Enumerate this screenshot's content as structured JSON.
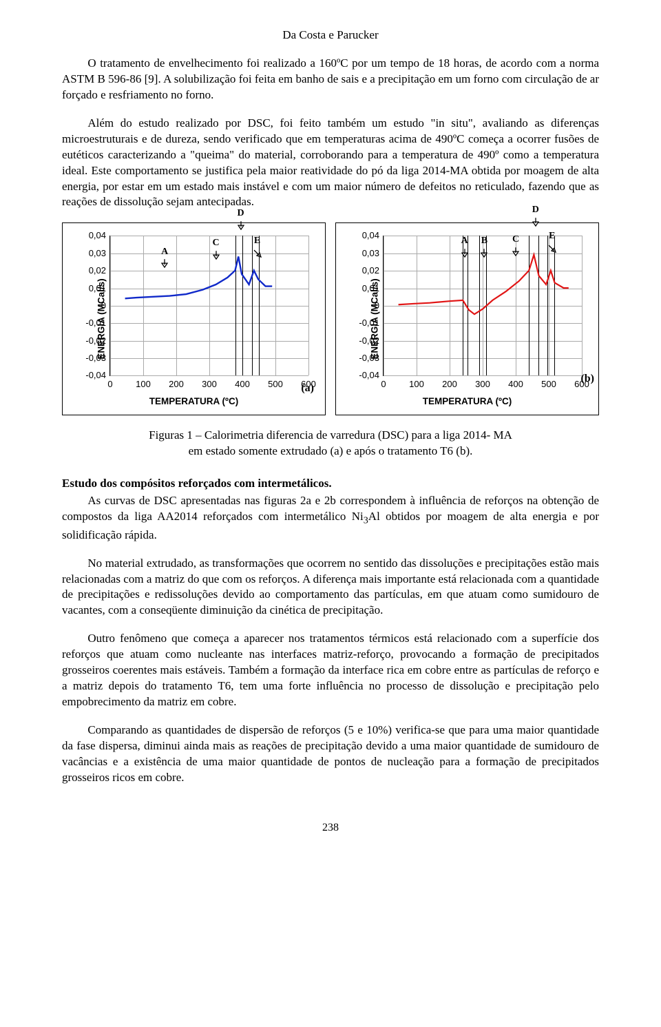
{
  "header_author": "Da Costa e Parucker",
  "para1": "O tratamento de envelhecimento foi realizado a 160ºC por um tempo de 18 horas, de acordo com a norma ASTM B 596-86 [9]. A solubilização foi feita em banho de sais e a precipitação em um forno com circulação de ar forçado e resfriamento no forno.",
  "para2": "Além do estudo realizado por DSC, foi feito também um estudo \"in situ\", avaliando as diferenças microestruturais e de dureza, sendo verificado que em temperaturas acima de 490ºC começa a ocorrer fusões de eutéticos caracterizando a \"queima\" do material, corroborando  para a temperatura de 490º como a temperatura ideal. Este comportamento se justifica pela maior reatividade do pó da liga 2014-MA obtida por moagem de alta energia, por estar em um estado mais instável e com um maior número de defeitos no reticulado, fazendo que as reações de dissolução sejam antecipadas.",
  "chart_a": {
    "type": "line",
    "line_color": "#1029c9",
    "line_width": 2.4,
    "x_ticks": [
      0,
      100,
      200,
      300,
      400,
      500,
      600
    ],
    "y_ticks": [
      -0.04,
      -0.03,
      -0.02,
      -0.01,
      0,
      0.01,
      0.02,
      0.03,
      0.04
    ],
    "y_tick_labels": [
      "-0,04",
      "-0,03",
      "-0,02",
      "-0,01",
      "0",
      "0,01",
      "0,02",
      "0,03",
      "0,04"
    ],
    "xlim": [
      0,
      600
    ],
    "ylim": [
      -0.04,
      0.04
    ],
    "grid_color": "#aaaaaa",
    "ylabel": "ENERGIA  (MCal/s)",
    "xlabel": "TEMPERATURA  (ºC)",
    "markers": [
      {
        "label": "A",
        "x": 165,
        "y_top": 0.021,
        "kind": "down"
      },
      {
        "label": "C",
        "x": 320,
        "y_top": 0.026,
        "kind": "down"
      },
      {
        "label": "D",
        "x": 395,
        "y_top": 0.043,
        "kind": "down"
      },
      {
        "label": "E",
        "x": 445,
        "y_top": 0.027,
        "kind": "diag"
      }
    ],
    "peak_lines_x": [
      380,
      400,
      430,
      450
    ],
    "curve_points": [
      {
        "x": 45,
        "y": 0.004
      },
      {
        "x": 80,
        "y": 0.0045
      },
      {
        "x": 130,
        "y": 0.005
      },
      {
        "x": 180,
        "y": 0.0055
      },
      {
        "x": 230,
        "y": 0.0065
      },
      {
        "x": 280,
        "y": 0.009
      },
      {
        "x": 320,
        "y": 0.012
      },
      {
        "x": 355,
        "y": 0.016
      },
      {
        "x": 378,
        "y": 0.02
      },
      {
        "x": 388,
        "y": 0.028
      },
      {
        "x": 398,
        "y": 0.018
      },
      {
        "x": 420,
        "y": 0.012
      },
      {
        "x": 435,
        "y": 0.02
      },
      {
        "x": 448,
        "y": 0.015
      },
      {
        "x": 470,
        "y": 0.011
      },
      {
        "x": 490,
        "y": 0.011
      }
    ],
    "subfig": "(a)"
  },
  "chart_b": {
    "type": "line",
    "line_color": "#e11515",
    "line_width": 2.2,
    "x_ticks": [
      0,
      100,
      200,
      300,
      400,
      500,
      600
    ],
    "y_ticks": [
      -0.04,
      -0.03,
      -0.02,
      -0.01,
      0,
      0.01,
      0.02,
      0.03,
      0.04
    ],
    "y_tick_labels": [
      "-0,04",
      "-0,03",
      "-0,02",
      "-0,01",
      "0",
      "0,01",
      "0,02",
      "0,03",
      "0,04"
    ],
    "xlim": [
      0,
      600
    ],
    "ylim": [
      -0.04,
      0.04
    ],
    "grid_color": "#aaaaaa",
    "ylabel": "ENERGIA  (MCal/s)",
    "xlabel": "TEMPERATURA  (ºC)",
    "markers": [
      {
        "label": "A",
        "x": 245,
        "y_top": 0.027,
        "kind": "down"
      },
      {
        "label": "B",
        "x": 305,
        "y_top": 0.027,
        "kind": "down"
      },
      {
        "label": "C",
        "x": 400,
        "y_top": 0.028,
        "kind": "down"
      },
      {
        "label": "D",
        "x": 460,
        "y_top": 0.045,
        "kind": "down"
      },
      {
        "label": "E",
        "x": 510,
        "y_top": 0.03,
        "kind": "diag"
      }
    ],
    "peak_lines_x": [
      240,
      255,
      290,
      310,
      440,
      468,
      495,
      517
    ],
    "curve_points": [
      {
        "x": 45,
        "y": 0.0005
      },
      {
        "x": 90,
        "y": 0.001
      },
      {
        "x": 140,
        "y": 0.0015
      },
      {
        "x": 200,
        "y": 0.0025
      },
      {
        "x": 240,
        "y": 0.003
      },
      {
        "x": 258,
        "y": -0.0025
      },
      {
        "x": 275,
        "y": -0.005
      },
      {
        "x": 300,
        "y": -0.002
      },
      {
        "x": 330,
        "y": 0.003
      },
      {
        "x": 370,
        "y": 0.008
      },
      {
        "x": 410,
        "y": 0.014
      },
      {
        "x": 440,
        "y": 0.02
      },
      {
        "x": 455,
        "y": 0.029
      },
      {
        "x": 470,
        "y": 0.017
      },
      {
        "x": 492,
        "y": 0.012
      },
      {
        "x": 506,
        "y": 0.02
      },
      {
        "x": 518,
        "y": 0.013
      },
      {
        "x": 545,
        "y": 0.01
      },
      {
        "x": 560,
        "y": 0.01
      }
    ],
    "subfig": "(b)"
  },
  "fig_caption1": "Figuras 1 – Calorimetria diferencia de varredura (DSC) para a liga 2014- MA",
  "fig_caption2": "em estado somente extrudado (a) e após o tratamento T6 (b).",
  "section_heading": "Estudo dos compósitos reforçados com intermetálicos.",
  "para3_a": "As curvas de DSC apresentadas nas figuras 2a e 2b correspondem à influência de reforços na obtenção de compostos da liga AA2014 reforçados com intermetálico Ni",
  "para3_sub": "3",
  "para3_b": "Al obtidos por moagem de alta energia e por solidificação rápida.",
  "para4": "No material extrudado, as transformações que ocorrem no sentido das dissoluções e precipitações estão mais relacionadas com a matriz do que com os reforços. A diferença mais importante está relacionada com a quantidade de precipitações e redissoluções devido ao comportamento das partículas, em que atuam como sumidouro de vacantes, com a conseqüente diminuição da cinética de precipitação.",
  "para5": "Outro fenômeno que começa a aparecer nos tratamentos térmicos está relacionado com a superfície dos reforços  que atuam como nucleante nas interfaces matriz-reforço, provocando a formação de precipitados grosseiros coerentes mais estáveis. Também a formação da interface rica em cobre entre as partículas de reforço e a matriz depois do tratamento T6, tem uma forte influência no processo de dissolução e precipitação pelo empobrecimento da matriz em cobre.",
  "para6": "Comparando as quantidades de dispersão de reforços (5 e 10%) verifica-se que para uma maior quantidade da fase dispersa, diminui ainda mais as reações de precipitação devido a uma maior quantidade de sumidouro de vacâncias e a existência de uma maior quantidade de pontos de nucleação para a formação de precipitados grosseiros ricos em cobre.",
  "page_number": "238"
}
